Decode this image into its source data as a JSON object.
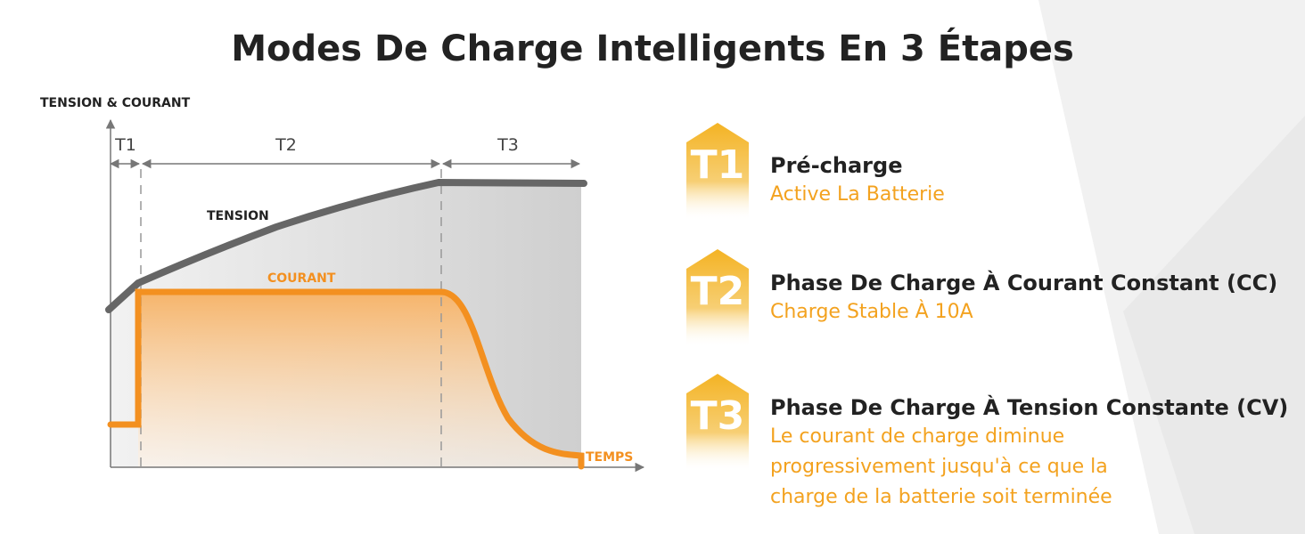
{
  "title": "Modes De Charge Intelligents En 3 Étapes",
  "diagram": {
    "y_axis_label": "TENSION & COURANT",
    "x_axis_label": "TEMPS",
    "phases": [
      "T1",
      "T2",
      "T3"
    ],
    "tension_label": "TENSION",
    "courant_label": "COURANT"
  },
  "steps": [
    {
      "badge": "T1",
      "heading": "Pré-charge",
      "description": [
        "Active La Batterie"
      ]
    },
    {
      "badge": "T2",
      "heading": "Phase De Charge À Courant Constant (CC)",
      "description": [
        "Charge Stable À 10A"
      ]
    },
    {
      "badge": "T3",
      "heading": "Phase De Charge À Tension Constante (CV)",
      "description": [
        "Le courant de charge diminue",
        "progressivement jusqu'à ce que la",
        "charge de la batterie soit terminée"
      ]
    }
  ]
}
